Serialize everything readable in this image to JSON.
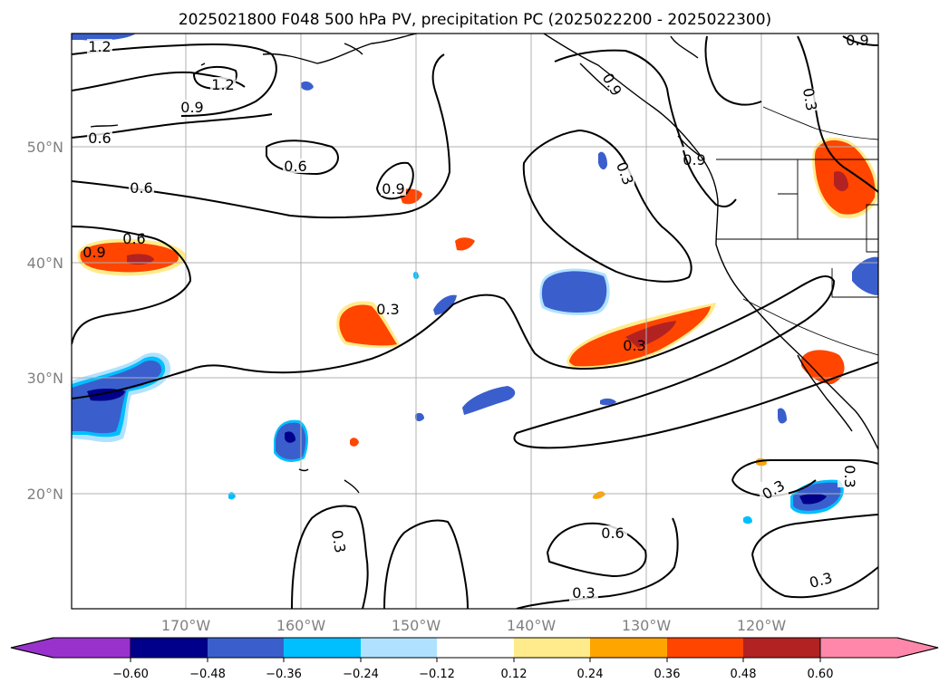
{
  "title": "2025021800 F048 500 hPa PV, precipitation PC (2025022200 - 2025022300)",
  "lat_labels": [
    "50°N",
    "40°N",
    "30°N",
    "20°N"
  ],
  "lon_labels": [
    "170°W",
    "160°W",
    "150°W",
    "140°W",
    "130°W",
    "120°W"
  ],
  "colorbar": {
    "ticks": [
      "−0.60",
      "−0.48",
      "−0.36",
      "−0.24",
      "−0.12",
      "0.12",
      "0.24",
      "0.36",
      "0.48",
      "0.60"
    ],
    "colors": [
      "#9932cc",
      "#00008b",
      "#3a5fcd",
      "#00bfff",
      "#b0e2ff",
      "#ffffff",
      "#ffeb8b",
      "#ffa500",
      "#ff4500",
      "#b22222",
      "#ff88aa"
    ]
  },
  "shading": {
    "negative_colors": {
      "strong": "#00008b",
      "mid": "#3a5fcd",
      "light": "#00bfff",
      "faint": "#b0e2ff"
    },
    "positive_colors": {
      "faint": "#ffeb8b",
      "light": "#ffa500",
      "mid": "#ff4500",
      "strong": "#b22222"
    }
  },
  "contour_labels": [
    "1.2",
    "1.2",
    "0.9",
    "0.6",
    "0.6",
    "0.6",
    "0.6",
    "0.9",
    "0.9",
    "0.3",
    "0.3",
    "0.3",
    "0.3",
    "0.9",
    "0.9",
    "0.9",
    "0.3",
    "0.3",
    "0.3",
    "0.6",
    "0.3",
    "0.3",
    "0.3",
    "0.3"
  ]
}
